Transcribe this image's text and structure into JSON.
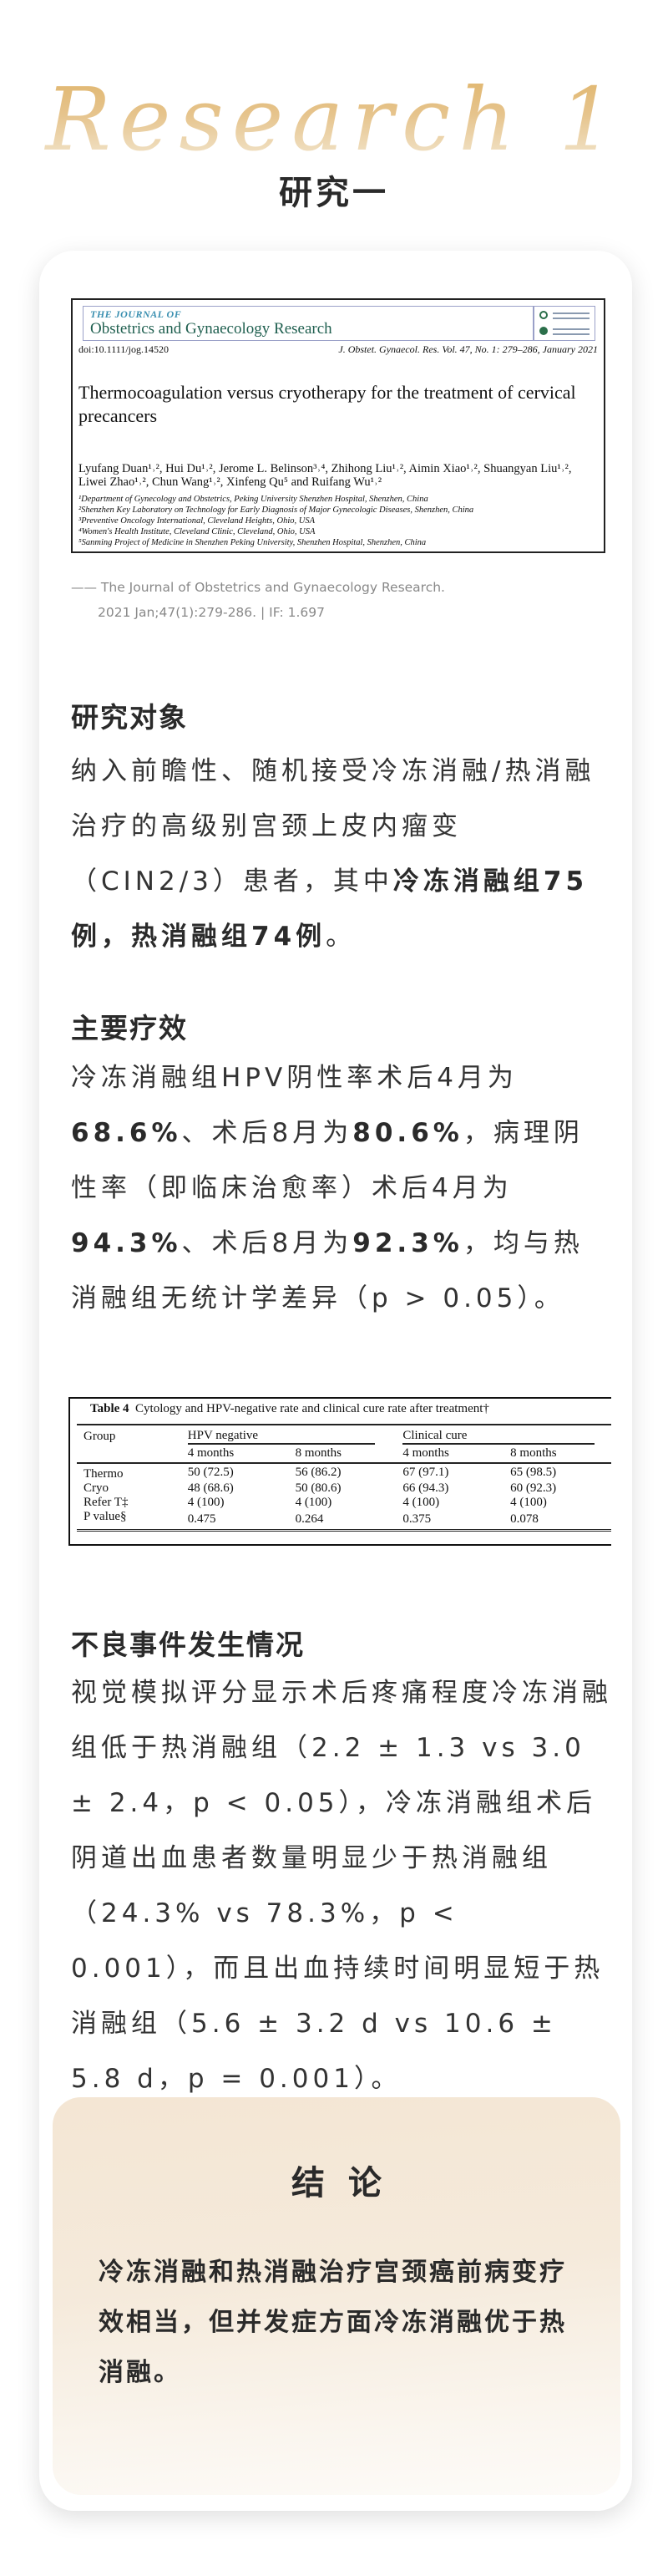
{
  "header": {
    "script_title": "Research 1",
    "title": "研究一"
  },
  "paper": {
    "journal_of": "THE JOURNAL OF",
    "journal_name": "Obstetrics and Gynaecology Research",
    "doi": "doi:10.1111/jog.14520",
    "citation": "J. Obstet. Gynaecol. Res. Vol. 47, No. 1: 279–286, January 2021",
    "title": "Thermocoagulation versus cryotherapy for the treatment of cervical precancers",
    "authors": "Lyufang Duan¹˒², Hui Du¹˒², Jerome L. Belinson³˒⁴, Zhihong Liu¹˒², Aimin Xiao¹˒², Shuangyan Liu¹˒², Liwei Zhao¹˒², Chun Wang¹˒², Xinfeng Qu⁵ and Ruifang Wu¹˒²",
    "affiliations": [
      "¹Department of Gynecology and Obstetrics, Peking University Shenzhen Hospital, Shenzhen, China",
      "²Shenzhen Key Laboratory on Technology for Early Diagnosis of Major Gynecologic Diseases, Shenzhen, China",
      "³Preventive Oncology International, Cleveland Heights, Ohio, USA",
      "⁴Women's Health Institute, Cleveland Clinic, Cleveland, Ohio, USA",
      "⁵Sanming Project of Medicine in Shenzhen Peking University, Shenzhen Hospital, Shenzhen, China"
    ]
  },
  "caption": {
    "line1": "—— The Journal of Obstetrics and Gynaecology Research.",
    "line2": "2021 Jan;47(1):279-286.  |  IF: 1.697"
  },
  "sections": [
    {
      "heading": "研究对象",
      "segments": [
        {
          "text": "纳入前瞻性、随机接受冷冻消融/热消融治疗的高级别宫颈上皮内瘤变（CIN2/3）患者，其中",
          "bold": false
        },
        {
          "text": "冷冻消融组75例，热消融组74例",
          "bold": true
        },
        {
          "text": "。",
          "bold": false
        }
      ]
    },
    {
      "heading": "主要疗效",
      "segments": [
        {
          "text": "冷冻消融组HPV阴性率术后4月为",
          "bold": false
        },
        {
          "text": "68.6%",
          "bold": true
        },
        {
          "text": "、术后8月为",
          "bold": false
        },
        {
          "text": "80.6%",
          "bold": true
        },
        {
          "text": "，病理阴性率（即临床治愈率）术后4月为",
          "bold": false
        },
        {
          "text": "94.3%",
          "bold": true
        },
        {
          "text": "、术后8月为",
          "bold": false
        },
        {
          "text": "92.3%",
          "bold": true
        },
        {
          "text": "，均与热消融组无统计学差异（p > 0.05）。",
          "bold": false
        }
      ]
    },
    {
      "heading": "不良事件发生情况",
      "segments": [
        {
          "text": "视觉模拟评分显示术后疼痛程度冷冻消融组低于热消融组（2.2 ± 1.3 vs 3.0 ± 2.4，p < 0.05），冷冻消融组术后阴道出血患者数量明显少于热消融组（24.3% vs 78.3%，p < 0.001），而且出血持续时间明显短于热消融组（5.6 ± 3.2 d vs 10.6 ± 5.8 d，p = 0.001）。",
          "bold": false
        }
      ]
    }
  ],
  "table": {
    "label": "Table 4",
    "caption": "Cytology and HPV-negative rate and clinical cure rate after treatment†",
    "group_header": "Group",
    "span_headers": [
      "HPV negative",
      "Clinical cure"
    ],
    "sub_headers": [
      "4 months",
      "8 months",
      "4 months",
      "8 months"
    ],
    "rows": [
      [
        "Thermo",
        "50 (72.5)",
        "56 (86.2)",
        "67 (97.1)",
        "65 (98.5)"
      ],
      [
        "Cryo",
        "48 (68.6)",
        "50 (80.6)",
        "66 (94.3)",
        "60 (92.3)"
      ],
      [
        "Refer T‡",
        "4 (100)",
        "4 (100)",
        "4 (100)",
        "4 (100)"
      ],
      [
        "P value§",
        "0.475",
        "0.264",
        "0.375",
        "0.078"
      ]
    ]
  },
  "conclusion": {
    "title": "结论",
    "text": "冷冻消融和热消融治疗宫颈癌前病变疗效相当，但并发症方面冷冻消融优于热消融。"
  },
  "colors": {
    "gold": "#e0b56c",
    "conclusion_bg": "#f4e6d4",
    "text": "#333333"
  }
}
